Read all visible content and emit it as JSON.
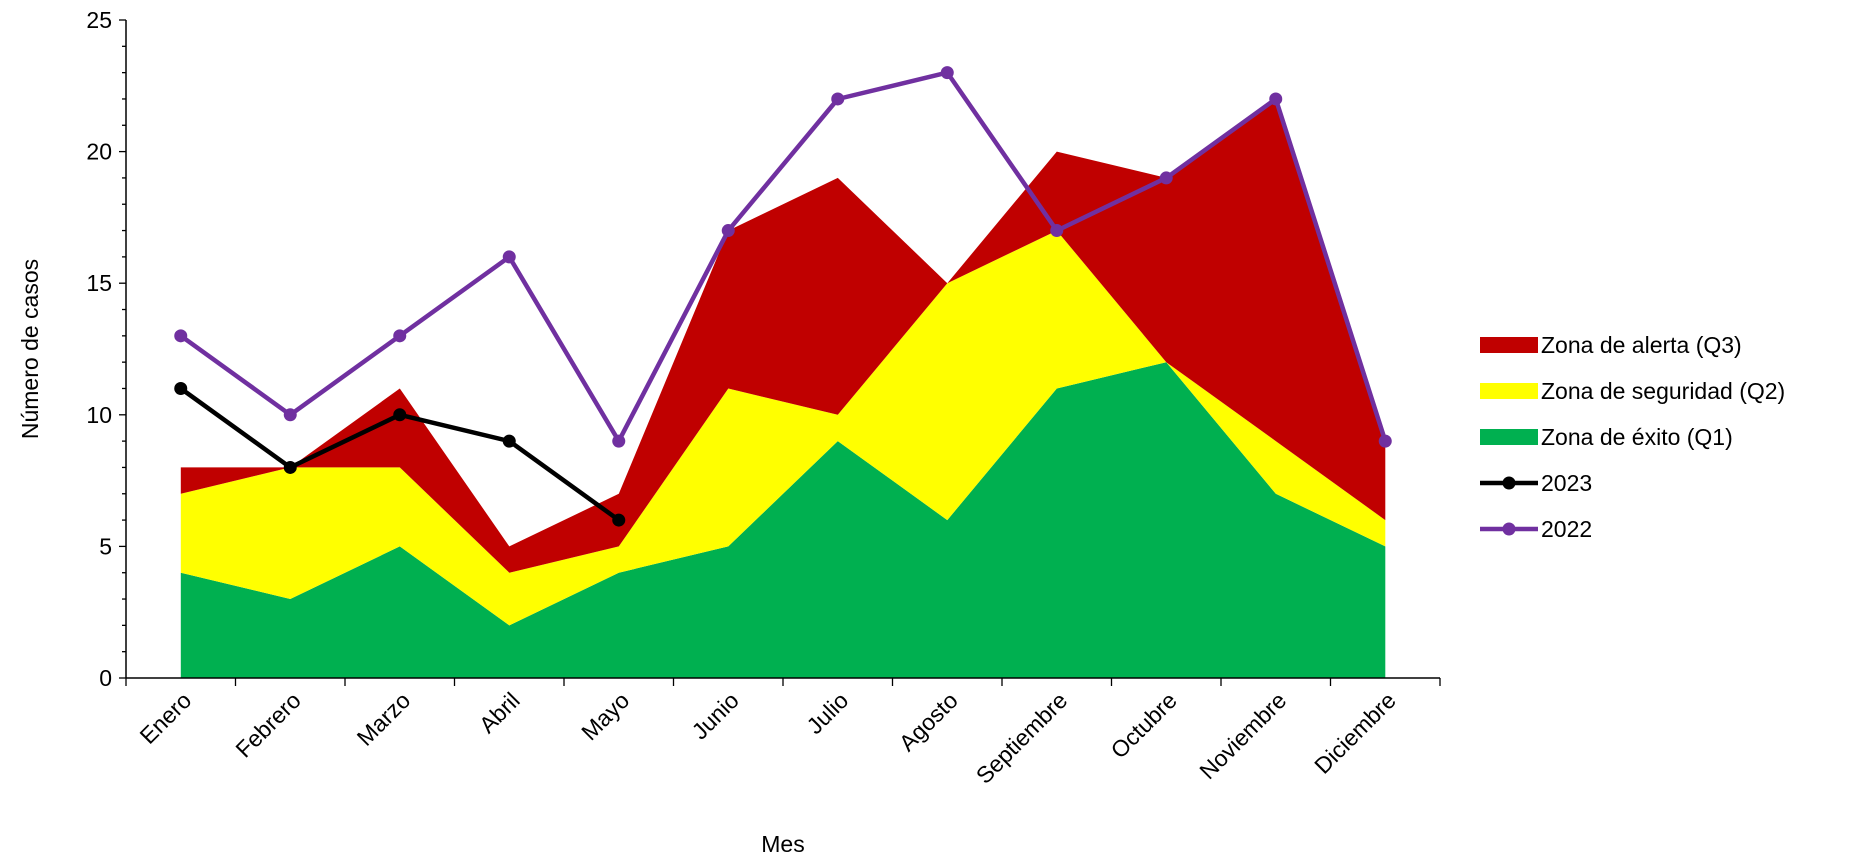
{
  "chart_data": {
    "type": "area",
    "categories": [
      "Enero",
      "Febrero",
      "Marzo",
      "Abril",
      "Mayo",
      "Junio",
      "Julio",
      "Agosto",
      "Septiembre",
      "Octubre",
      "Noviembre",
      "Diciembre"
    ],
    "xlabel": "Mes",
    "ylabel": "Número de casos",
    "ylim": [
      0,
      25
    ],
    "yticks": [
      0,
      5,
      10,
      15,
      20,
      25
    ],
    "grid": false,
    "legend_position": "right",
    "stacked_areas": [
      {
        "name": "Zona de éxito (Q1)",
        "color": "#00b050",
        "values": [
          4,
          3,
          5,
          2,
          4,
          5,
          9,
          6,
          11,
          12,
          7,
          5
        ]
      },
      {
        "name": "Zona de seguridad (Q2)",
        "color": "#ffff00",
        "values": [
          3,
          5,
          3,
          2,
          1,
          6,
          1,
          9,
          6,
          0,
          2,
          1
        ]
      },
      {
        "name": "Zona de alerta (Q3)",
        "color": "#c00000",
        "values": [
          1,
          0,
          3,
          1,
          2,
          6,
          9,
          0,
          3,
          7,
          13,
          3
        ]
      }
    ],
    "lines": [
      {
        "name": "2023",
        "color": "#000000",
        "values": [
          11,
          8,
          10,
          9,
          6,
          null,
          null,
          null,
          null,
          null,
          null,
          null
        ]
      },
      {
        "name": "2022",
        "color": "#7030a0",
        "values": [
          13,
          10,
          13,
          16,
          9,
          17,
          22,
          23,
          17,
          19,
          22,
          9
        ]
      }
    ],
    "legend": [
      {
        "name": "Zona de alerta (Q3)",
        "kind": "area",
        "color": "#c00000"
      },
      {
        "name": "Zona de seguridad (Q2)",
        "kind": "area",
        "color": "#ffff00"
      },
      {
        "name": "Zona de éxito (Q1)",
        "kind": "area",
        "color": "#00b050"
      },
      {
        "name": "2023",
        "kind": "line",
        "color": "#000000"
      },
      {
        "name": "2022",
        "kind": "line",
        "color": "#7030a0"
      }
    ]
  }
}
